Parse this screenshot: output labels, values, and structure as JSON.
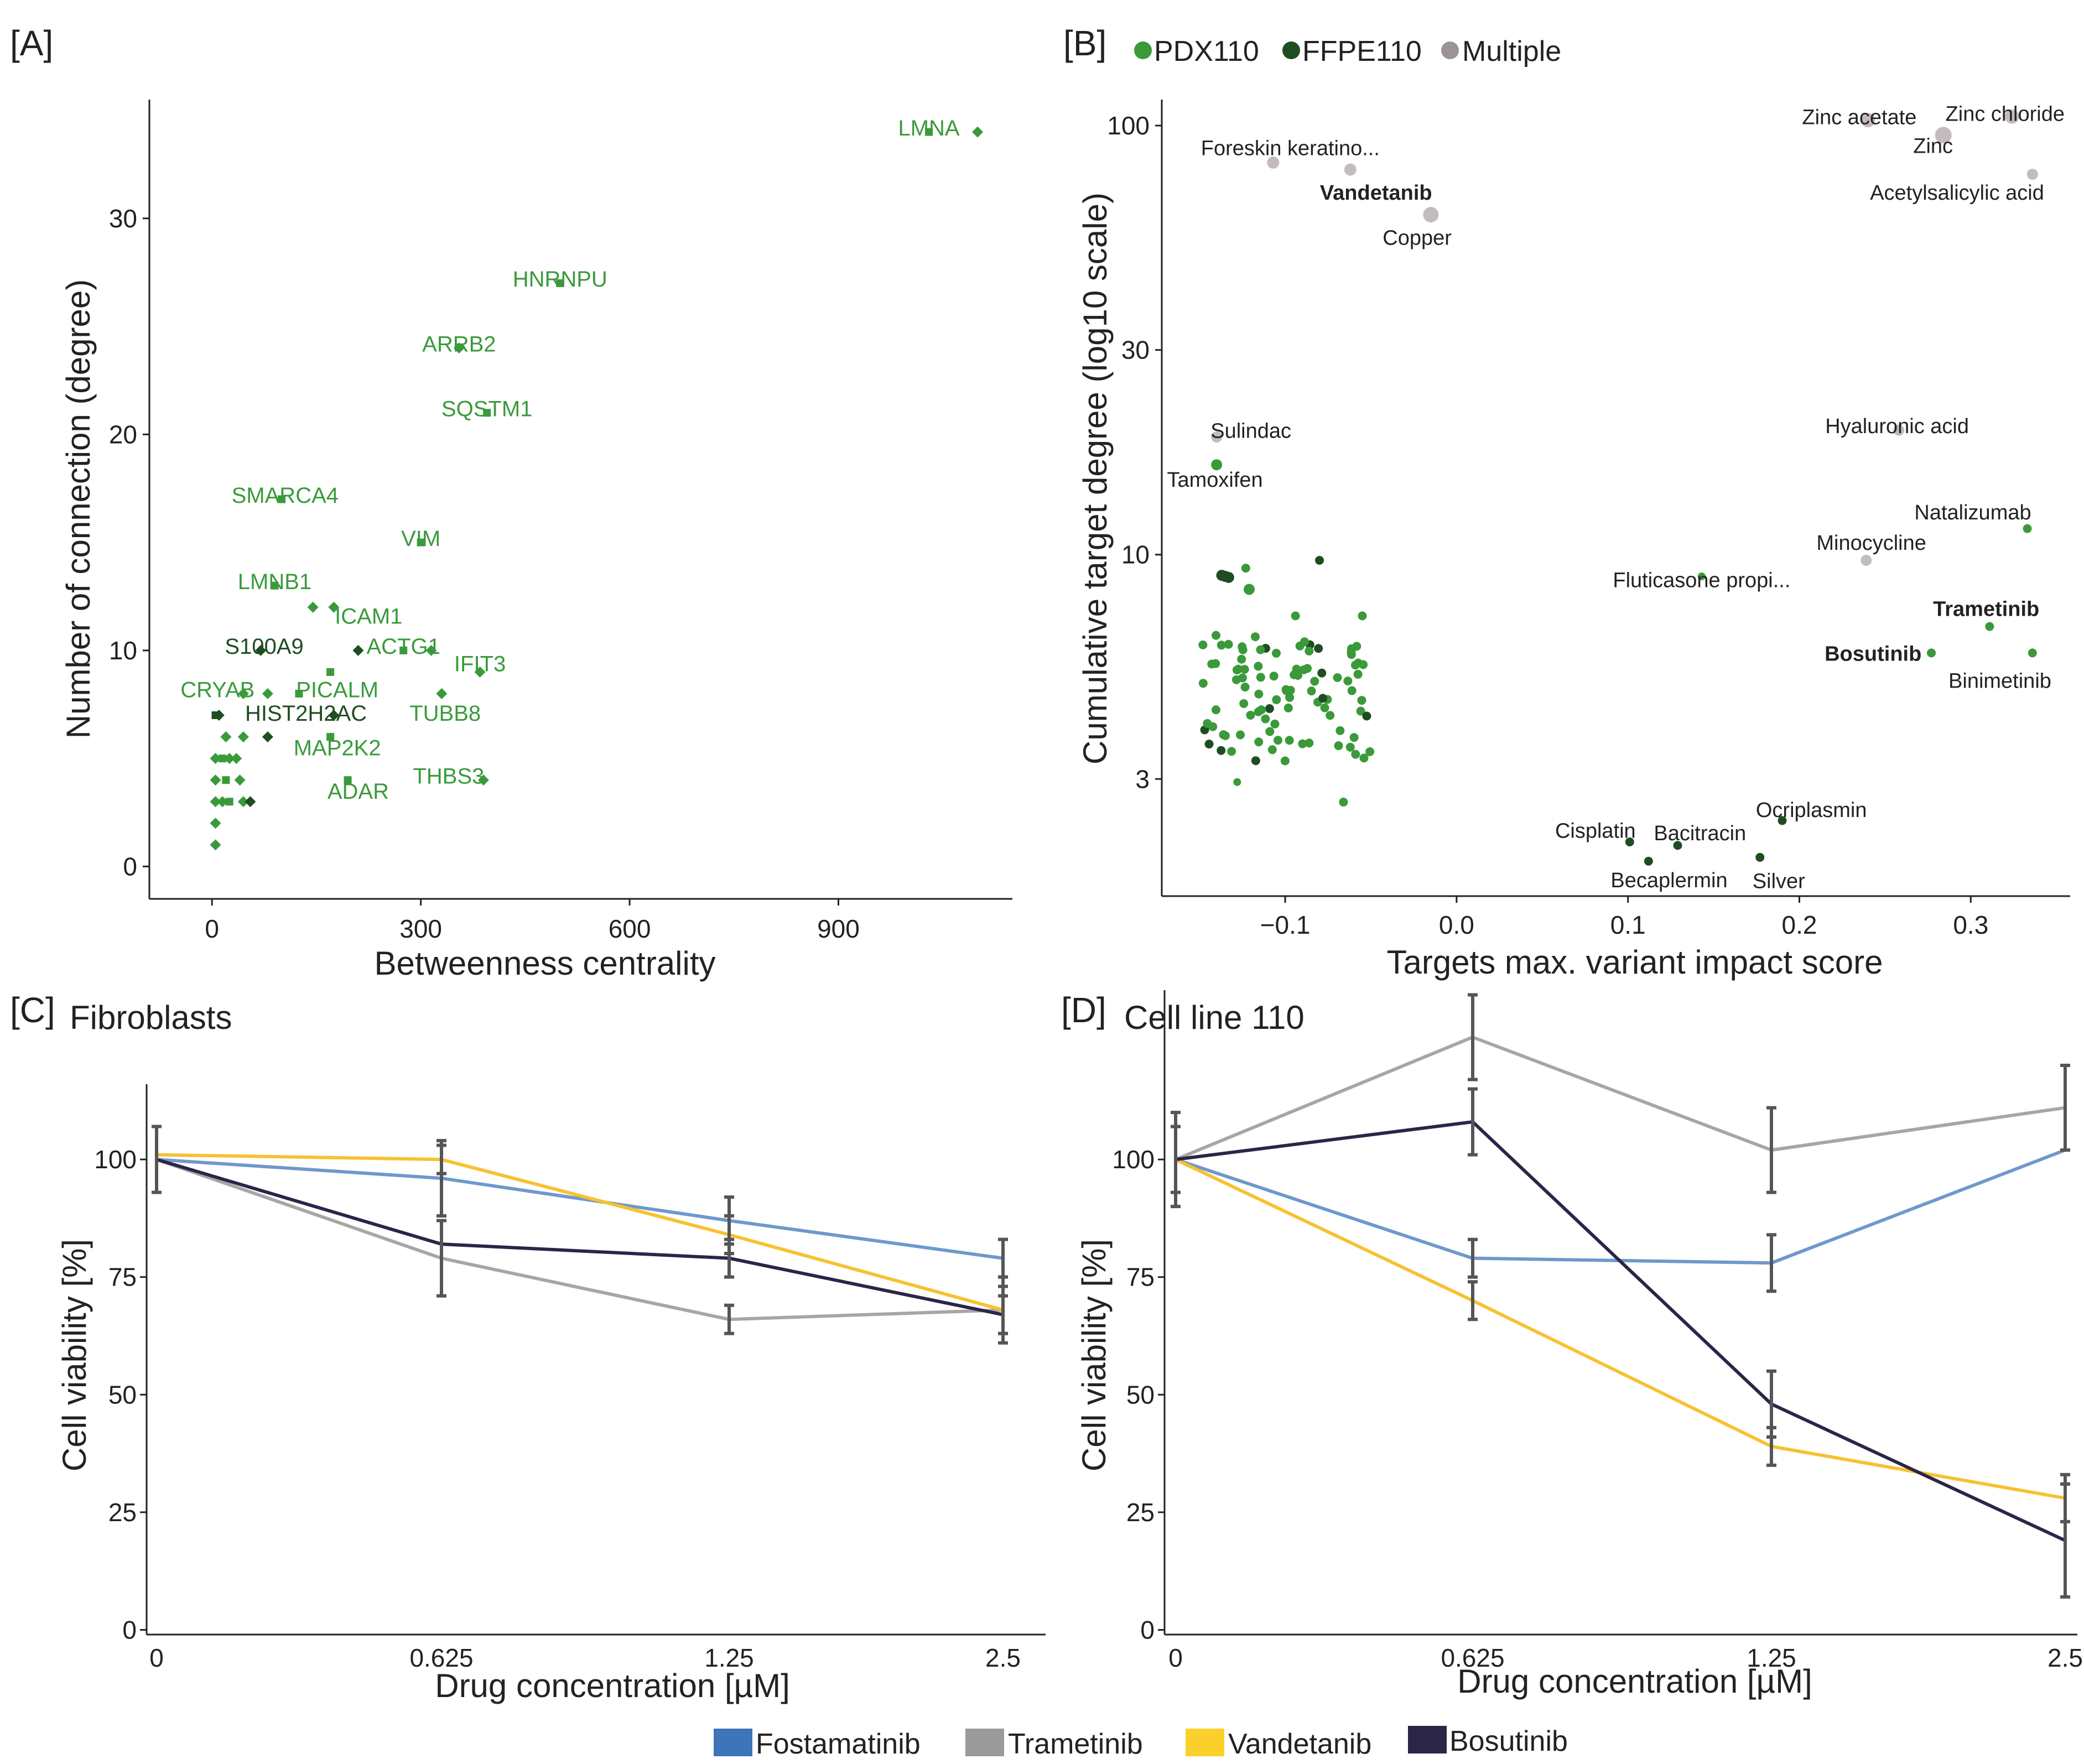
{
  "colors": {
    "pdx": "#3a9a3a",
    "ffpe": "#1e4d22",
    "multiple": "#c4bcbc",
    "fostamatinib": "#6f98cc",
    "trametinib": "#a9a5a5",
    "vandetanib": "#f7c131",
    "bosutinib": "#2b2548",
    "errorbar": "#555555",
    "axis": "#222222"
  },
  "panelA": {
    "panel_label": "[A]",
    "chart_data": {
      "type": "scatter",
      "xlabel": "Betweenness centrality",
      "ylabel": "Number of connection (degree)",
      "xlim": [
        -90,
        1150
      ],
      "ylim": [
        -1.5,
        35.5
      ],
      "xticks": [
        "0",
        "300",
        "600",
        "900"
      ],
      "yticks": [
        "0",
        "10",
        "20",
        "30"
      ],
      "labels": [
        {
          "text": "LMNA",
          "x": 1030,
          "y": 34.3,
          "group": "pdx"
        },
        {
          "text": "HNRNPU",
          "x": 500,
          "y": 27.3,
          "group": "pdx"
        },
        {
          "text": "ARRB2",
          "x": 355,
          "y": 24.3,
          "group": "pdx"
        },
        {
          "text": "SQSTM1",
          "x": 395,
          "y": 21.3,
          "group": "pdx"
        },
        {
          "text": "SMARCA4",
          "x": 105,
          "y": 17.3,
          "group": "pdx"
        },
        {
          "text": "VIM",
          "x": 300,
          "y": 15.3,
          "group": "pdx"
        },
        {
          "text": "LMNB1",
          "x": 90,
          "y": 13.3,
          "group": "pdx"
        },
        {
          "text": "ICAM1",
          "x": 225,
          "y": 11.7,
          "group": "pdx"
        },
        {
          "text": "S100A9",
          "x": 75,
          "y": 10.3,
          "group": "ffpe"
        },
        {
          "text": "ACTG1",
          "x": 275,
          "y": 10.3,
          "group": "pdx"
        },
        {
          "text": "IFIT3",
          "x": 385,
          "y": 9.5,
          "group": "pdx"
        },
        {
          "text": "CRYAB",
          "x": 8,
          "y": 8.3,
          "group": "pdx"
        },
        {
          "text": "PICALM",
          "x": 180,
          "y": 8.3,
          "group": "pdx"
        },
        {
          "text": "HIST2H2AC",
          "x": 135,
          "y": 7.2,
          "group": "ffpe"
        },
        {
          "text": "TUBB8",
          "x": 335,
          "y": 7.2,
          "group": "pdx"
        },
        {
          "text": "MAP2K2",
          "x": 180,
          "y": 5.6,
          "group": "pdx"
        },
        {
          "text": "THBS3",
          "x": 340,
          "y": 4.3,
          "group": "pdx"
        },
        {
          "text": "ADAR",
          "x": 210,
          "y": 3.6,
          "group": "pdx"
        }
      ]
    }
  },
  "panelB": {
    "panel_label": "[B]",
    "legend": [
      {
        "key": "pdx",
        "label": "PDX110"
      },
      {
        "key": "ffpe",
        "label": "FFPE110"
      },
      {
        "key": "multiple",
        "label": "Multiple"
      }
    ],
    "chart_data": {
      "type": "scatter",
      "xlabel": "Targets max. variant impact score",
      "ylabel": "Cumulative target degree (log10 scale)",
      "xlim": [
        -0.172,
        0.358
      ],
      "ylim_log": [
        1.6,
        115
      ],
      "xticks": [
        "−0.1",
        "0.0",
        "0.1",
        "0.2",
        "0.3"
      ],
      "yticks": [
        "3",
        "10",
        "30",
        "100"
      ],
      "labels": [
        {
          "text": "Zinc acetate",
          "x": 0.235,
          "y": 105,
          "bold": false
        },
        {
          "text": "Zinc chloride",
          "x": 0.32,
          "y": 107,
          "bold": false
        },
        {
          "text": "Zinc",
          "x": 0.278,
          "y": 90,
          "bold": false
        },
        {
          "text": "Foreskin keratino...",
          "x": -0.097,
          "y": 89,
          "bold": false
        },
        {
          "text": "Acetylsalicylic acid",
          "x": 0.292,
          "y": 70,
          "bold": false
        },
        {
          "text": "Vandetanib",
          "x": -0.047,
          "y": 70,
          "bold": true
        },
        {
          "text": "Copper",
          "x": -0.023,
          "y": 55,
          "bold": false
        },
        {
          "text": "Sulindac",
          "x": -0.12,
          "y": 19.5,
          "bold": false
        },
        {
          "text": "Hyaluronic acid",
          "x": 0.257,
          "y": 20,
          "bold": false
        },
        {
          "text": "Tamoxifen",
          "x": -0.141,
          "y": 15.0,
          "bold": false
        },
        {
          "text": "Natalizumab",
          "x": 0.3012,
          "y": 12.6,
          "bold": false
        },
        {
          "text": "Minocycline",
          "x": 0.242,
          "y": 10.7,
          "bold": false
        },
        {
          "text": "Fluticasone propi...",
          "x": 0.143,
          "y": 8.75,
          "bold": false
        },
        {
          "text": "Trametinib",
          "x": 0.309,
          "y": 7.5,
          "bold": true
        },
        {
          "text": "Bosutinib",
          "x": 0.243,
          "y": 5.9,
          "bold": true
        },
        {
          "text": "Binimetinib",
          "x": 0.317,
          "y": 5.1,
          "bold": false
        },
        {
          "text": "Ocriplasmin",
          "x": 0.207,
          "y": 2.55,
          "bold": false
        },
        {
          "text": "Cisplatin",
          "x": 0.081,
          "y": 2.28,
          "bold": false
        },
        {
          "text": "Bacitracin",
          "x": 0.142,
          "y": 2.25,
          "bold": false
        },
        {
          "text": "Becaplermin",
          "x": 0.124,
          "y": 1.75,
          "bold": false
        },
        {
          "text": "Silver",
          "x": 0.188,
          "y": 1.74,
          "bold": false
        }
      ]
    }
  },
  "panelC": {
    "panel_label": "[C]",
    "title": "Fibroblasts",
    "chart_data": {
      "type": "line",
      "xlabel": "Drug concentration [µM]",
      "ylabel": "Cell viability [%]",
      "categories": [
        "0",
        "0.625",
        "1.25",
        "2.5"
      ],
      "ylim": [
        -1,
        116
      ],
      "yticks": [
        "0",
        "25",
        "50",
        "75",
        "100"
      ],
      "series": [
        {
          "name": "Fostamatinib",
          "key": "fostamatinib",
          "values": [
            100,
            96,
            87,
            79
          ],
          "err": [
            0,
            8,
            5,
            4
          ]
        },
        {
          "name": "Trametinib",
          "key": "trametinib",
          "values": [
            100,
            79,
            66,
            68
          ],
          "err": [
            0,
            8,
            3,
            5
          ]
        },
        {
          "name": "Vandetanib",
          "key": "vandetanib",
          "values": [
            101,
            100,
            84,
            68
          ],
          "err": [
            0,
            3,
            4,
            7
          ]
        },
        {
          "name": "Bosutinib",
          "key": "bosutinib",
          "values": [
            100,
            82,
            79,
            67
          ],
          "err": [
            7,
            0,
            4,
            4
          ]
        }
      ]
    }
  },
  "panelD": {
    "panel_label": "[D]",
    "title": "Cell line 110",
    "chart_data": {
      "type": "line",
      "xlabel": "Drug concentration [µM]",
      "ylabel": "Cell viability [%]",
      "categories": [
        "0",
        "0.625",
        "1.25",
        "2.5"
      ],
      "ylim": [
        -1,
        136
      ],
      "yticks": [
        "0",
        "25",
        "50",
        "75",
        "100"
      ],
      "series": [
        {
          "name": "Fostamatinib",
          "key": "fostamatinib",
          "values": [
            100,
            79,
            78,
            102
          ],
          "err": [
            0,
            4,
            6,
            0
          ]
        },
        {
          "name": "Trametinib",
          "key": "trametinib",
          "values": [
            100,
            126,
            102,
            111
          ],
          "err": [
            7,
            9,
            9,
            9
          ]
        },
        {
          "name": "Vandetanib",
          "key": "vandetanib",
          "values": [
            100,
            70,
            39,
            28
          ],
          "err": [
            0,
            4,
            4,
            5
          ]
        },
        {
          "name": "Bosutinib",
          "key": "bosutinib",
          "values": [
            100,
            108,
            48,
            19
          ],
          "err": [
            10,
            7,
            7,
            12
          ]
        }
      ]
    }
  },
  "bottom_legend": [
    {
      "key": "fostamatinib",
      "label": "Fostamatinib"
    },
    {
      "key": "trametinib",
      "label": "Trametinib"
    },
    {
      "key": "vandetanib",
      "label": "Vandetanib"
    },
    {
      "key": "bosutinib",
      "label": "Bosutinib"
    }
  ]
}
